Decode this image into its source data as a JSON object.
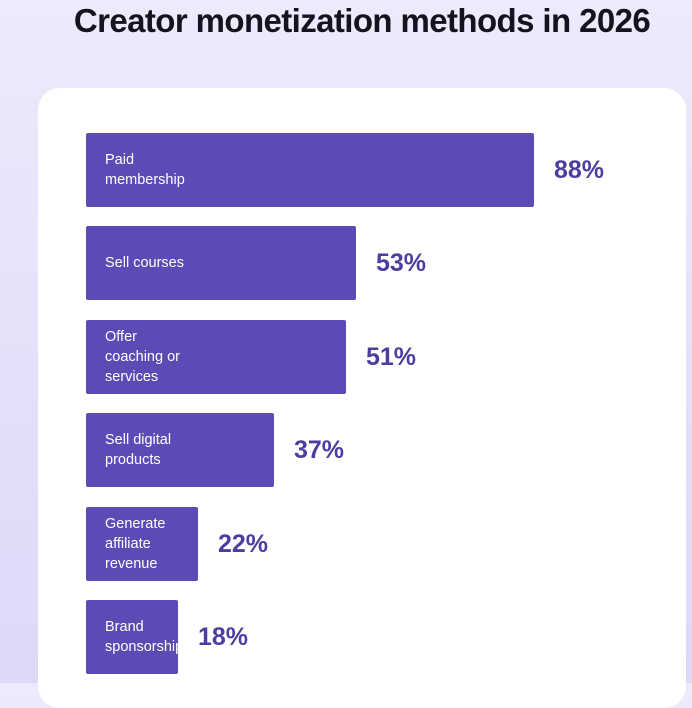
{
  "header": {
    "title": "Creator monetization methods in 2026"
  },
  "chart_data": {
    "type": "bar",
    "orientation": "horizontal",
    "title": "Creator monetization methods in 2026",
    "categories": [
      "Paid\nmembership",
      "Sell courses",
      "Offer\ncoaching or\nservices",
      "Sell digital\nproducts",
      "Generate\naffiliate\nrevenue",
      "Brand\nsponsorships"
    ],
    "values": [
      88,
      53,
      51,
      37,
      22,
      18
    ],
    "value_labels": [
      "88%",
      "53%",
      "51%",
      "37%",
      "22%",
      "18%"
    ],
    "unit": "%",
    "xlim": [
      0,
      88
    ],
    "grid": false,
    "bar_color": "#5b4bb5",
    "value_color": "#4b3ea0",
    "background_color": "#e4e0f9",
    "card_color": "#ffffff"
  }
}
